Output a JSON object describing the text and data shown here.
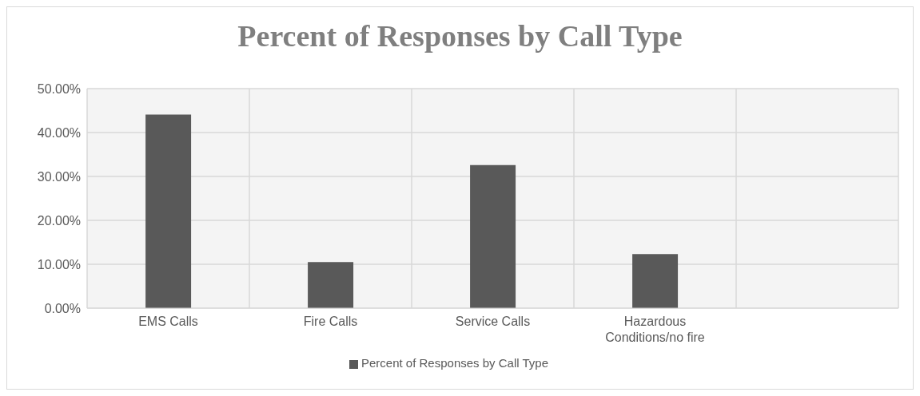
{
  "chart_data": {
    "type": "bar",
    "title": "Percent of Responses by Call Type",
    "categories": [
      "EMS Calls",
      "Fire Calls",
      "Service Calls",
      "Hazardous Conditions/no fire",
      null
    ],
    "series": [
      {
        "name": "Percent of Responses by Call Type",
        "color": "#595959",
        "values": [
          44.1,
          10.5,
          32.6,
          12.3,
          null
        ]
      }
    ],
    "ylim": [
      0,
      50
    ],
    "yticks": [
      {
        "value": 0,
        "label": "0.00%"
      },
      {
        "value": 10,
        "label": "10.00%"
      },
      {
        "value": 20,
        "label": "20.00%"
      },
      {
        "value": 30,
        "label": "30.00%"
      },
      {
        "value": 40,
        "label": "40.00%"
      },
      {
        "value": 50,
        "label": "50.00%"
      }
    ],
    "grid": true,
    "legend": "bottom"
  }
}
